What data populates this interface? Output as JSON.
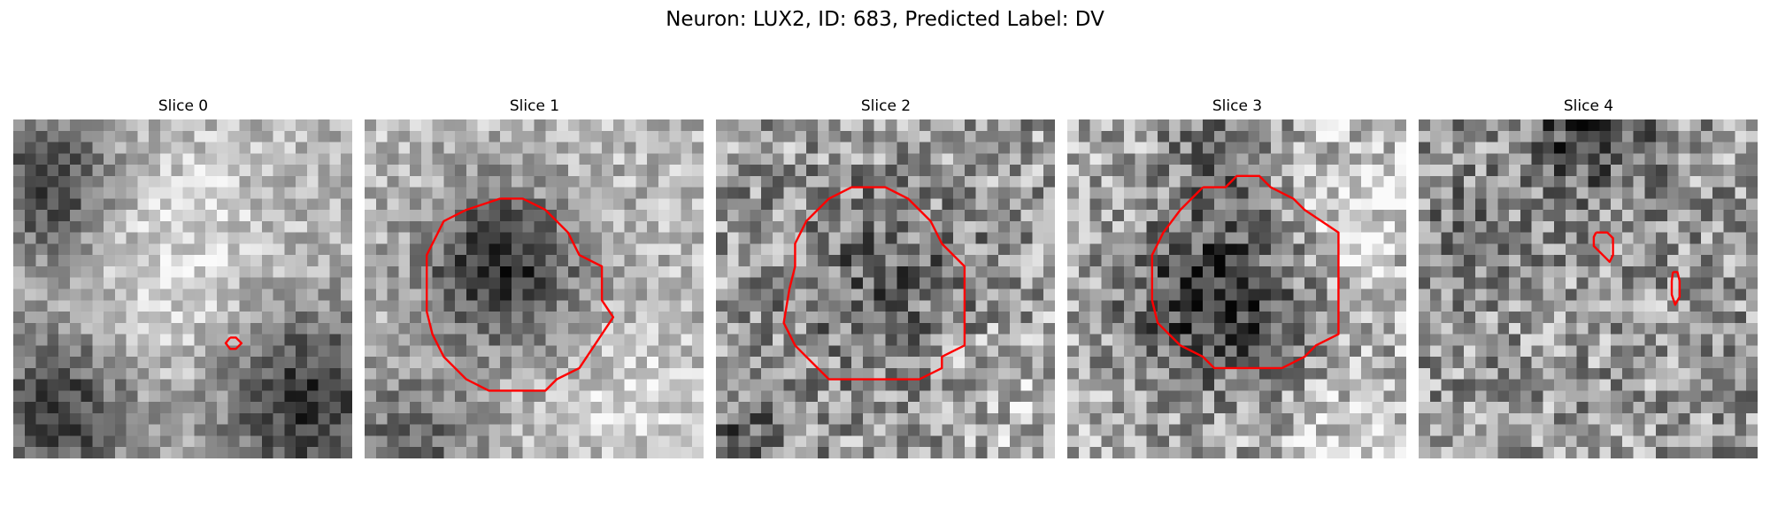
{
  "figure": {
    "title": "Neuron: LUX2, ID: 683, Predicted Label: DV"
  },
  "panels": [
    {
      "title": "Slice 0"
    },
    {
      "title": "Slice 1"
    },
    {
      "title": "Slice 2"
    },
    {
      "title": "Slice 3"
    },
    {
      "title": "Slice 4"
    }
  ],
  "colors": {
    "background": "#ffffff",
    "contour": "#ff0000",
    "image_colormap": "gray"
  }
}
